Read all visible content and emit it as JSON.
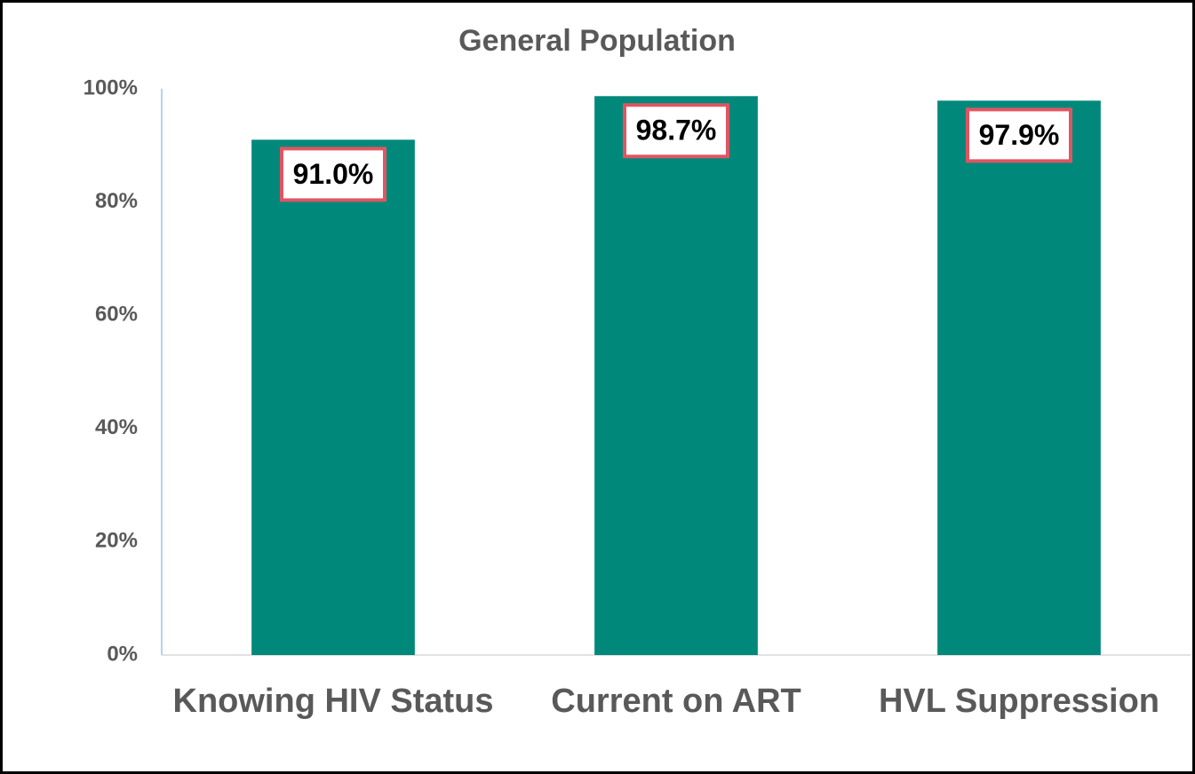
{
  "chart_data": {
    "type": "bar",
    "title": "General Population",
    "categories": [
      "Knowing HIV Status",
      "Current on ART",
      "HVL Suppression"
    ],
    "values": [
      91.0,
      98.7,
      97.9
    ],
    "value_labels": [
      "91.0%",
      "98.7%",
      "97.9%"
    ],
    "color": "#00897b",
    "ylim": [
      0,
      100
    ],
    "yticks": [
      {
        "value": 0,
        "label": "0%"
      },
      {
        "value": 20,
        "label": "20%"
      },
      {
        "value": 40,
        "label": "40%"
      },
      {
        "value": 60,
        "label": "60%"
      },
      {
        "value": 80,
        "label": "80%"
      },
      {
        "value": 100,
        "label": "100%"
      }
    ],
    "grid": false
  }
}
